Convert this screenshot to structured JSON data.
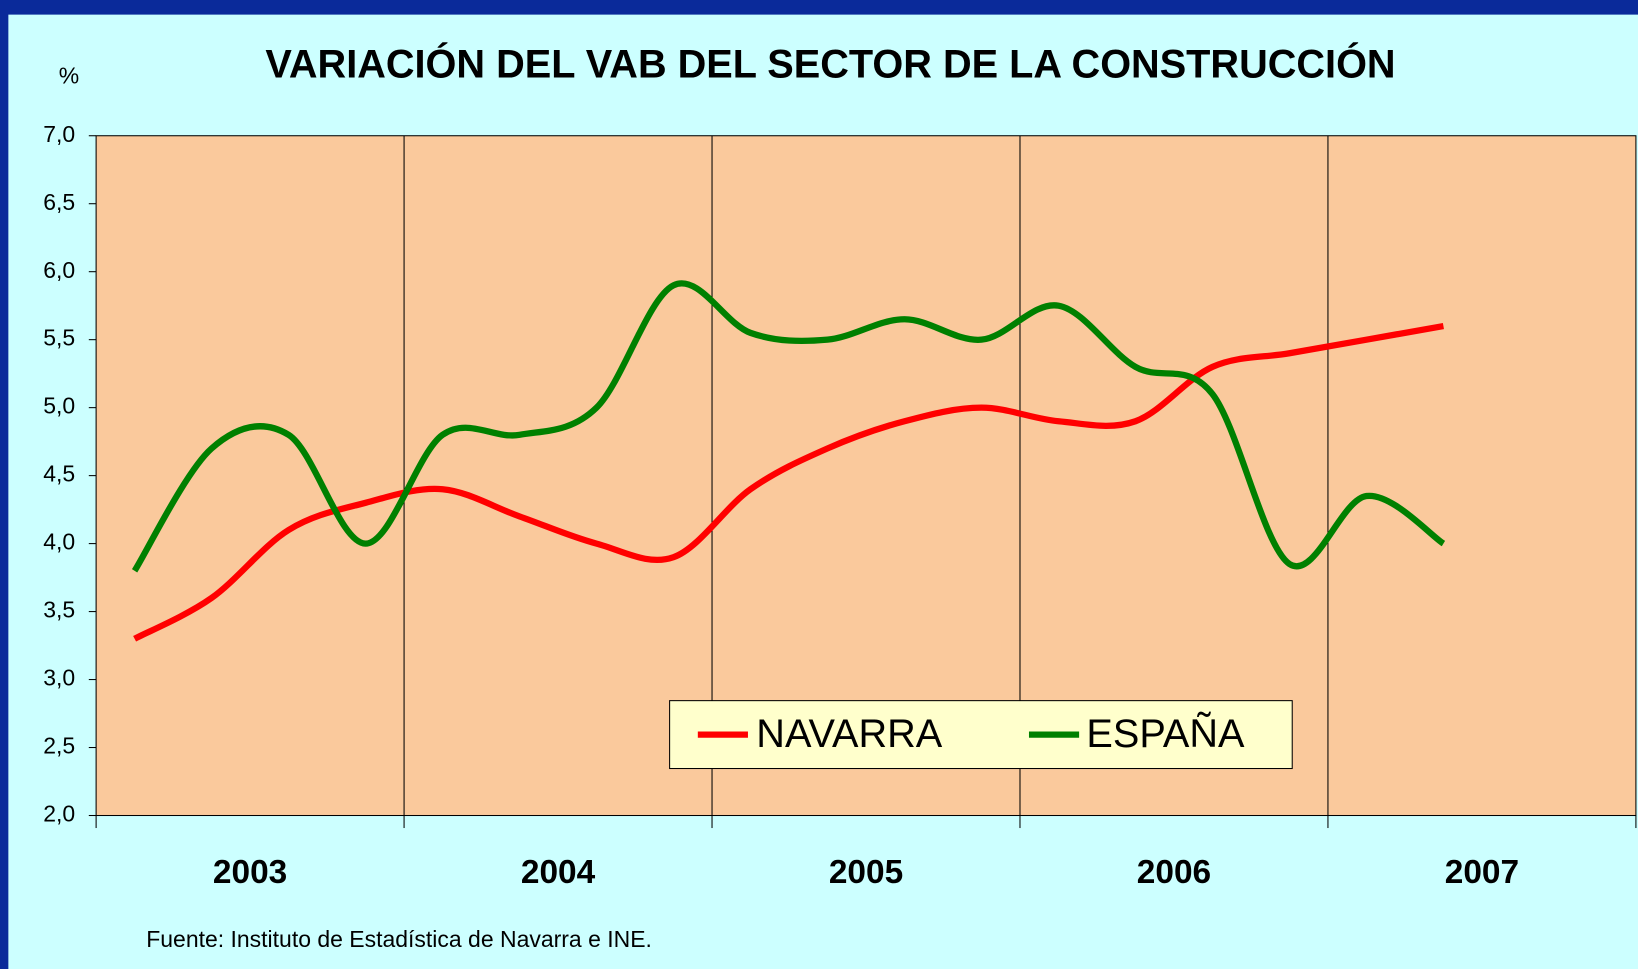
{
  "chart_data": {
    "type": "line",
    "title": "VARIACIÓN DEL VAB DEL SECTOR DE LA CONSTRUCCIÓN",
    "y_unit": "%",
    "source": "Fuente: Instituto de Estadística de Navarra e INE.",
    "x_groups": [
      "2003",
      "2004",
      "2005",
      "2006",
      "2007"
    ],
    "categories": [
      null,
      null,
      null,
      null,
      null,
      null,
      null,
      null,
      null,
      null,
      null,
      null,
      null,
      null,
      null,
      null,
      null,
      null
    ],
    "series": [
      {
        "name": "NAVARRA",
        "color": "#ff0000",
        "values": [
          3.3,
          3.6,
          4.1,
          4.3,
          4.4,
          4.2,
          4.0,
          3.9,
          4.4,
          4.7,
          4.9,
          5.0,
          4.9,
          4.9,
          5.3,
          5.4,
          5.5,
          5.6
        ]
      },
      {
        "name": "ESPAÑA",
        "color": "#008000",
        "values": [
          3.8,
          4.7,
          4.8,
          4.0,
          4.8,
          4.8,
          5.0,
          5.9,
          5.55,
          5.5,
          5.65,
          5.5,
          5.75,
          5.3,
          5.1,
          3.85,
          4.35,
          4.0
        ]
      }
    ],
    "ylim": [
      2,
      7
    ],
    "yticks": [
      {
        "value": 2,
        "label": "2,0"
      },
      {
        "value": 2.5,
        "label": "2,5"
      },
      {
        "value": 3,
        "label": "3,0"
      },
      {
        "value": 3.5,
        "label": "3,5"
      },
      {
        "value": 4,
        "label": "4,0"
      },
      {
        "value": 4.5,
        "label": "4,5"
      },
      {
        "value": 5,
        "label": "5,0"
      },
      {
        "value": 5.5,
        "label": "5,5"
      },
      {
        "value": 6,
        "label": "6,0"
      },
      {
        "value": 6.5,
        "label": "6,5"
      },
      {
        "value": 7,
        "label": "7,0"
      }
    ],
    "grid": true,
    "legend": "bottom"
  }
}
